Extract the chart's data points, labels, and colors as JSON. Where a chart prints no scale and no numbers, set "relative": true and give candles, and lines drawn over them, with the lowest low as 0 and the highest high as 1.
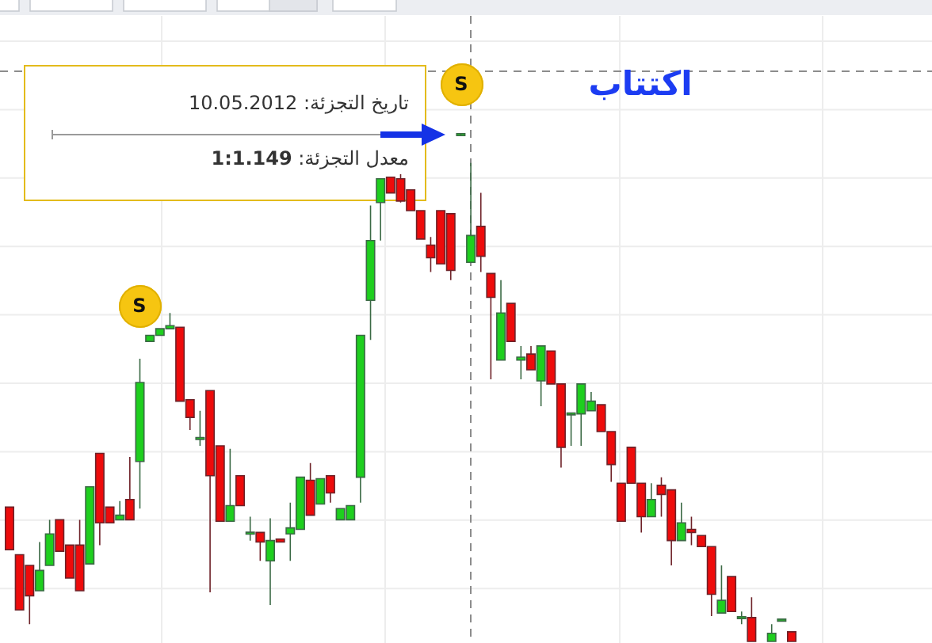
{
  "chart_data": {
    "type": "candlestick",
    "relative": true,
    "grid": true,
    "categories": [
      null,
      null,
      null,
      null,
      null,
      null,
      null,
      null,
      null,
      null,
      null,
      null,
      null,
      null,
      null,
      null,
      null,
      null,
      null,
      null,
      null,
      null,
      null,
      null,
      null,
      null,
      null,
      null,
      null,
      null,
      null,
      null,
      null,
      null,
      null,
      null,
      null,
      null,
      null,
      null,
      null,
      null,
      null,
      null,
      null,
      null,
      null,
      null,
      null,
      null,
      null,
      null,
      null,
      null,
      null,
      null,
      null,
      null,
      null,
      null,
      null,
      null,
      null,
      null,
      null,
      null,
      null,
      null,
      null,
      null,
      null,
      null,
      null,
      null,
      null,
      null,
      null,
      null,
      null
    ],
    "ohlc": [
      [
        0.265,
        0.265,
        0.181,
        0.181
      ],
      [
        0.171,
        0.171,
        0.062,
        0.062
      ],
      [
        0.15,
        0.15,
        0.034,
        0.09
      ],
      [
        0.1,
        0.196,
        0.1,
        0.14
      ],
      [
        0.15,
        0.24,
        0.15,
        0.212
      ],
      [
        0.24,
        0.24,
        0.178,
        0.178
      ],
      [
        0.19,
        0.19,
        0.125,
        0.125
      ],
      [
        0.19,
        0.24,
        0.1,
        0.1
      ],
      [
        0.153,
        0.305,
        0.153,
        0.305
      ],
      [
        0.371,
        0.371,
        0.19,
        0.234
      ],
      [
        0.265,
        0.265,
        0.234,
        0.234
      ],
      [
        0.24,
        0.277,
        0.24,
        0.249
      ],
      [
        0.28,
        0.364,
        0.24,
        0.24
      ],
      [
        0.355,
        0.558,
        0.262,
        0.511
      ],
      [
        0.592,
        0.604,
        0.592,
        0.604
      ],
      [
        0.604,
        0.617,
        0.604,
        0.617
      ],
      [
        0.617,
        0.648,
        0.617,
        0.623
      ],
      [
        0.62,
        0.62,
        0.474,
        0.474
      ],
      [
        0.477,
        0.477,
        0.417,
        0.442
      ],
      [
        0.399,
        0.455,
        0.386,
        0.402
      ],
      [
        0.495,
        0.495,
        0.097,
        0.327
      ],
      [
        0.386,
        0.386,
        0.237,
        0.237
      ],
      [
        0.237,
        0.38,
        0.237,
        0.268
      ],
      [
        0.327,
        0.327,
        0.268,
        0.268
      ],
      [
        0.212,
        0.246,
        0.199,
        0.215
      ],
      [
        0.215,
        0.215,
        0.159,
        0.196
      ],
      [
        0.159,
        0.243,
        0.072,
        0.199
      ],
      [
        0.202,
        0.202,
        0.196,
        0.196
      ],
      [
        0.212,
        0.274,
        0.159,
        0.224
      ],
      [
        0.221,
        0.324,
        0.221,
        0.324
      ],
      [
        0.318,
        0.352,
        0.249,
        0.249
      ],
      [
        0.271,
        0.321,
        0.271,
        0.321
      ],
      [
        0.327,
        0.327,
        0.274,
        0.293
      ],
      [
        0.24,
        0.262,
        0.24,
        0.262
      ],
      [
        0.24,
        0.268,
        0.24,
        0.268
      ],
      [
        0.324,
        0.604,
        0.274,
        0.604
      ],
      [
        0.673,
        0.86,
        0.595,
        0.791
      ],
      [
        0.866,
        0.913,
        0.791,
        0.913
      ],
      [
        0.916,
        0.916,
        0.885,
        0.885
      ],
      [
        0.913,
        0.922,
        0.866,
        0.869
      ],
      [
        0.891,
        0.891,
        0.85,
        0.85
      ],
      [
        0.85,
        0.85,
        0.794,
        0.794
      ],
      [
        0.782,
        0.798,
        0.729,
        0.757
      ],
      [
        0.85,
        0.85,
        0.745,
        0.745
      ],
      [
        0.844,
        0.844,
        0.713,
        0.732
      ],
      [
        1,
        1,
        1,
        1
      ],
      [
        0.748,
        0.944,
        0.748,
        0.801
      ],
      [
        0.819,
        0.885,
        0.729,
        0.76
      ],
      [
        0.726,
        0.726,
        0.517,
        0.679
      ],
      [
        0.555,
        0.713,
        0.555,
        0.648
      ],
      [
        0.667,
        0.667,
        0.592,
        0.592
      ],
      [
        0.555,
        0.583,
        0.517,
        0.561
      ],
      [
        0.567,
        0.583,
        0.536,
        0.536
      ],
      [
        0.514,
        0.583,
        0.464,
        0.583
      ],
      [
        0.573,
        0.573,
        0.508,
        0.508
      ],
      [
        0.508,
        0.508,
        0.343,
        0.383
      ],
      [
        0.449,
        0.449,
        0.386,
        0.449
      ],
      [
        0.449,
        0.508,
        0.386,
        0.508
      ],
      [
        0.455,
        0.492,
        0.455,
        0.474
      ],
      [
        0.467,
        0.467,
        0.414,
        0.414
      ],
      [
        0.414,
        0.414,
        0.315,
        0.349
      ],
      [
        0.312,
        0.312,
        0.237,
        0.237
      ],
      [
        0.383,
        0.383,
        0.312,
        0.312
      ],
      [
        0.312,
        0.312,
        0.215,
        0.246
      ],
      [
        0.246,
        0.312,
        0.246,
        0.28
      ],
      [
        0.308,
        0.324,
        0.246,
        0.29
      ],
      [
        0.299,
        0.299,
        0.15,
        0.199
      ],
      [
        0.199,
        0.274,
        0.199,
        0.234
      ],
      [
        0.221,
        0.246,
        0.19,
        0.215
      ],
      [
        0.209,
        0.209,
        0.187,
        0.187
      ],
      [
        0.187,
        0.187,
        0.05,
        0.093
      ],
      [
        0.056,
        0.15,
        0.056,
        0.081
      ],
      [
        0.128,
        0.128,
        0.059,
        0.059
      ],
      [
        0.047,
        0.059,
        0.034,
        0.047
      ],
      [
        0.047,
        0.087,
        0,
        0
      ],
      null,
      [
        0,
        0.034,
        0,
        0.016
      ],
      [
        0.04,
        0.044,
        0.04,
        0.044
      ],
      [
        0.019,
        0.019,
        0,
        0
      ]
    ],
    "ref_lines": [
      {
        "axis": "y",
        "value": 1.125,
        "line_style": "dashed",
        "color": "#8c8c8c"
      }
    ],
    "annotations": [
      "S",
      "S",
      "اكتتاب",
      "تاريخ التجزئة: 10.05.2012",
      "معدل التجزئة: **1:1.149**"
    ]
  }
}
